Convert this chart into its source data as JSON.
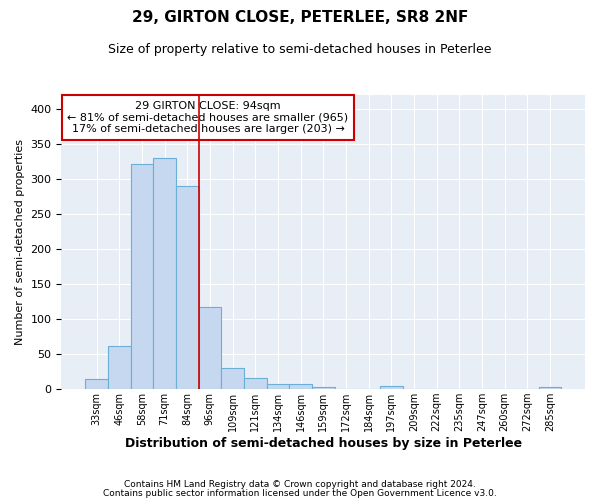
{
  "title1": "29, GIRTON CLOSE, PETERLEE, SR8 2NF",
  "title2": "Size of property relative to semi-detached houses in Peterlee",
  "xlabel": "Distribution of semi-detached houses by size in Peterlee",
  "ylabel": "Number of semi-detached properties",
  "footnote1": "Contains HM Land Registry data © Crown copyright and database right 2024.",
  "footnote2": "Contains public sector information licensed under the Open Government Licence v3.0.",
  "annotation_line1": "29 GIRTON CLOSE: 94sqm",
  "annotation_line2": "← 81% of semi-detached houses are smaller (965)",
  "annotation_line3": "17% of semi-detached houses are larger (203) →",
  "bar_categories": [
    "33sqm",
    "46sqm",
    "58sqm",
    "71sqm",
    "84sqm",
    "96sqm",
    "109sqm",
    "121sqm",
    "134sqm",
    "146sqm",
    "159sqm",
    "172sqm",
    "184sqm",
    "197sqm",
    "209sqm",
    "222sqm",
    "235sqm",
    "247sqm",
    "260sqm",
    "272sqm",
    "285sqm"
  ],
  "bar_values": [
    14,
    62,
    322,
    330,
    290,
    117,
    30,
    16,
    8,
    7,
    3,
    0,
    0,
    5,
    0,
    0,
    0,
    0,
    0,
    0,
    3
  ],
  "bar_color": "#c5d8f0",
  "bar_edge_color": "#6baed6",
  "bar_width": 1.0,
  "vline_x": 4.5,
  "vline_color": "#cc0000",
  "annotation_box_color": "#cc0000",
  "background_color": "#e8eef6",
  "ylim": [
    0,
    420
  ],
  "yticks": [
    0,
    50,
    100,
    150,
    200,
    250,
    300,
    350,
    400
  ],
  "title1_fontsize": 11,
  "title2_fontsize": 9,
  "xlabel_fontsize": 9,
  "ylabel_fontsize": 8,
  "tick_fontsize": 8,
  "ann_fontsize": 8
}
